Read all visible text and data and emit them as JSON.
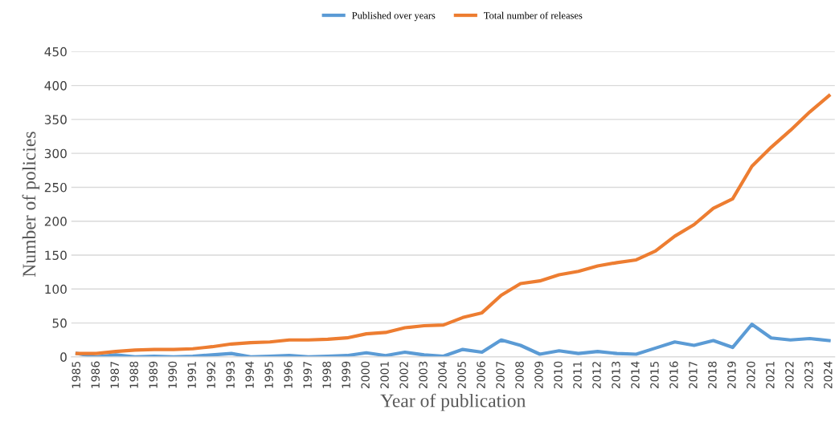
{
  "chart_data": {
    "type": "line",
    "xlabel": "Year of publication",
    "ylabel": "Number of policies",
    "categories": [
      "1985",
      "1986",
      "1987",
      "1988",
      "1989",
      "1990",
      "1991",
      "1992",
      "1993",
      "1994",
      "1995",
      "1996",
      "1997",
      "1998",
      "1999",
      "2000",
      "2001",
      "2002",
      "2003",
      "2004",
      "2005",
      "2006",
      "2007",
      "2008",
      "2009",
      "2010",
      "2011",
      "2012",
      "2013",
      "2014",
      "2015",
      "2016",
      "2017",
      "2018",
      "2019",
      "2020",
      "2021",
      "2022",
      "2023",
      "2024"
    ],
    "series": [
      {
        "name": "Published over years",
        "color": "#5b9bd5",
        "values": [
          5,
          0,
          3,
          0,
          1,
          0,
          1,
          3,
          5,
          0,
          1,
          2,
          0,
          1,
          2,
          6,
          2,
          7,
          3,
          1,
          11,
          7,
          25,
          17,
          4,
          9,
          5,
          8,
          5,
          4,
          13,
          22,
          17,
          24,
          14,
          48,
          28,
          25,
          27,
          24
        ]
      },
      {
        "name": "Total number of releases",
        "color": "#ed7d31",
        "values": [
          5,
          5,
          8,
          10,
          11,
          11,
          12,
          15,
          19,
          21,
          22,
          25,
          25,
          26,
          28,
          34,
          36,
          43,
          46,
          47,
          58,
          65,
          91,
          108,
          112,
          121,
          126,
          134,
          139,
          143,
          156,
          178,
          195,
          219,
          233,
          281,
          309,
          334,
          361,
          385
        ]
      }
    ],
    "ylim": [
      0,
      450
    ],
    "yticks": [
      0,
      50,
      100,
      150,
      200,
      250,
      300,
      350,
      400,
      450
    ],
    "grid": "y",
    "legend": "top",
    "marker": "none",
    "line_style": "solid"
  }
}
